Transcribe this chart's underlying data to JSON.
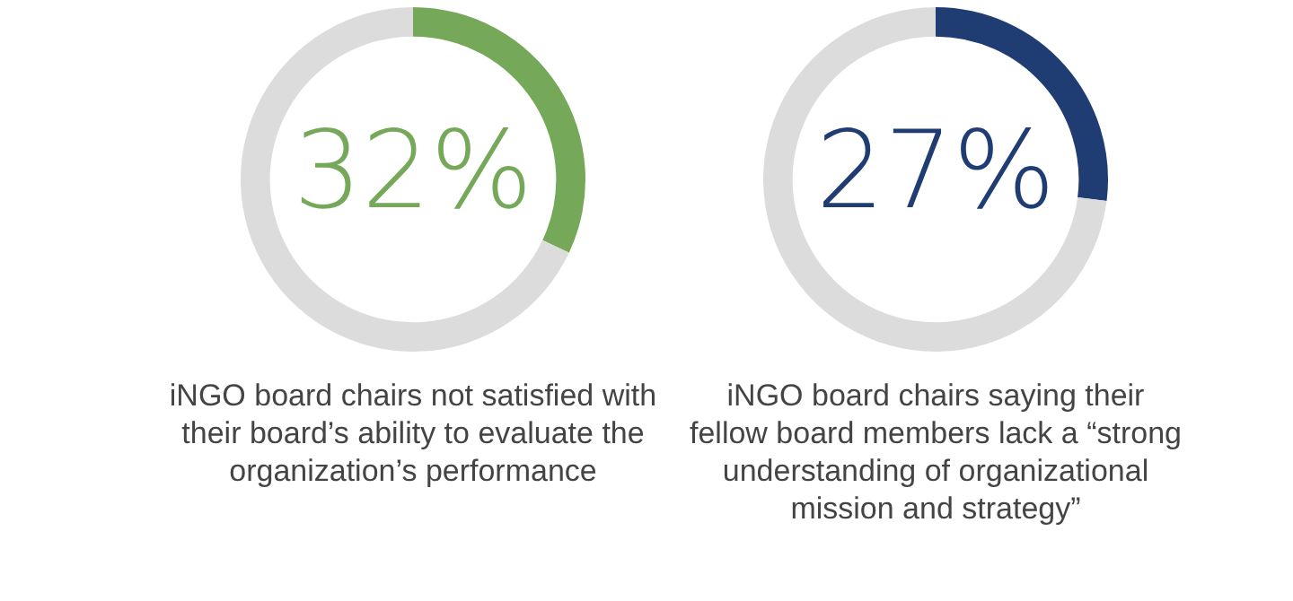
{
  "chart_data": [
    {
      "type": "donut",
      "title": "iNGO board chairs not satisfied with their board’s ability to evaluate the organization’s performance",
      "categories": [
        null,
        null
      ],
      "values": [
        32,
        68
      ],
      "colors": [
        "#76a85a",
        "#dcdcdc"
      ],
      "value_labels": [
        "32%",
        null
      ]
    },
    {
      "type": "donut",
      "title": "iNGO board chairs saying their fellow board members lack a “strong understanding of organizational mission and strategy”",
      "categories": [
        null,
        null
      ],
      "values": [
        27,
        73
      ],
      "colors": [
        "#1f3d73",
        "#dcdcdc"
      ],
      "value_labels": [
        "27%",
        null
      ]
    }
  ]
}
